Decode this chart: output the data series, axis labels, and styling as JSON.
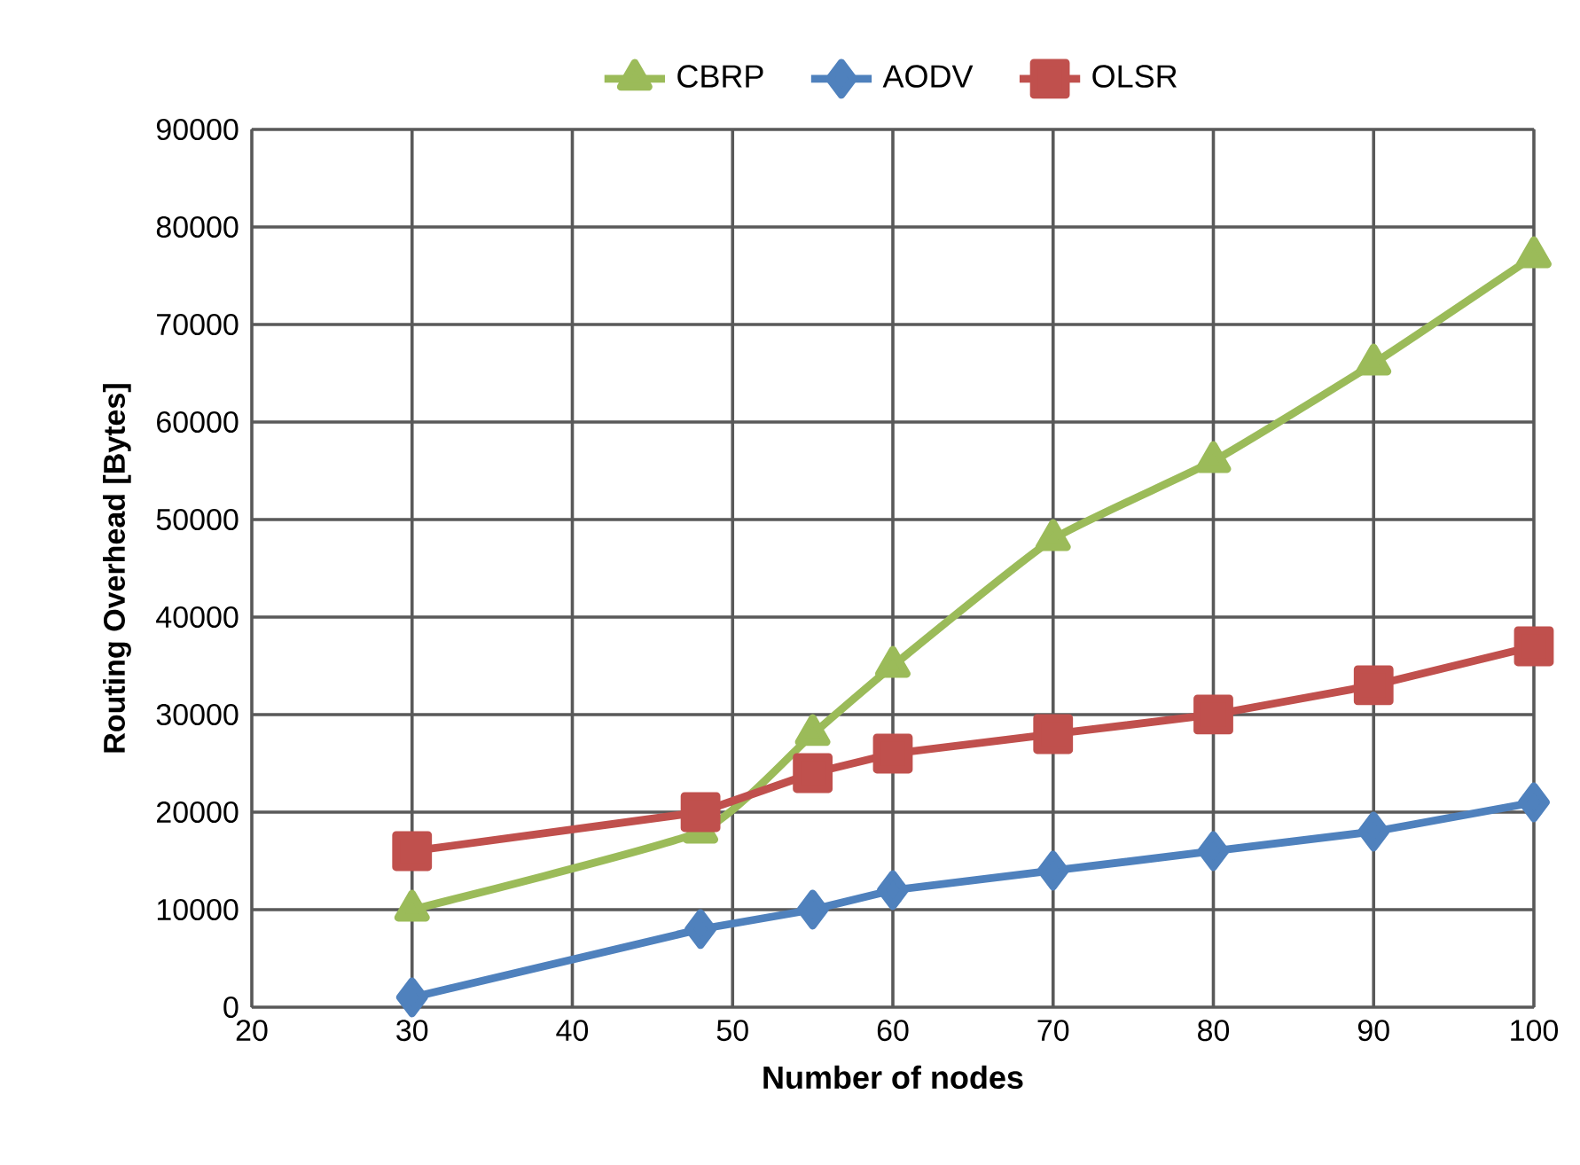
{
  "chart_data": {
    "type": "line",
    "xlabel": "Number of nodes",
    "ylabel": "Routing Overhead [Bytes]",
    "series": [
      {
        "name": "CBRP",
        "color": "#9bbb59",
        "marker": "triangle",
        "x": [
          30,
          48,
          55,
          60,
          70,
          80,
          90,
          100
        ],
        "values": [
          10000,
          18000,
          28000,
          35000,
          48000,
          56000,
          66000,
          77000
        ]
      },
      {
        "name": "AODV",
        "color": "#4f81bd",
        "marker": "diamond",
        "x": [
          30,
          48,
          55,
          60,
          70,
          80,
          90,
          100
        ],
        "values": [
          1000,
          8000,
          10000,
          12000,
          14000,
          16000,
          18000,
          21000
        ]
      },
      {
        "name": "OLSR",
        "color": "#c0504d",
        "marker": "square",
        "x": [
          30,
          48,
          55,
          60,
          70,
          80,
          90,
          100
        ],
        "values": [
          16000,
          20000,
          24000,
          26000,
          28000,
          30000,
          33000,
          37000
        ]
      }
    ],
    "xlim": [
      20,
      100
    ],
    "xticks": [
      20,
      30,
      40,
      50,
      60,
      70,
      80,
      90,
      100
    ],
    "ylim": [
      0,
      90000
    ],
    "yticks": [
      0,
      10000,
      20000,
      30000,
      40000,
      50000,
      60000,
      70000,
      80000,
      90000
    ],
    "grid": true,
    "legend": "top"
  }
}
